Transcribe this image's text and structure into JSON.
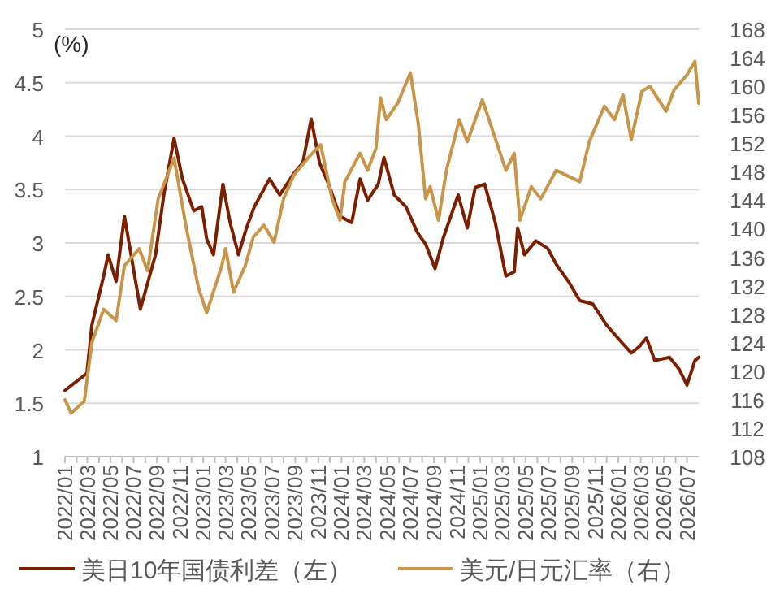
{
  "chart_data": {
    "type": "line",
    "ylabel": "(%)",
    "ylim": [
      1,
      5
    ],
    "yticks": [
      1,
      1.5,
      2,
      2.5,
      3,
      3.5,
      4,
      4.5,
      5
    ],
    "y2lim": [
      108,
      168
    ],
    "y2ticks": [
      108,
      112,
      116,
      120,
      124,
      128,
      132,
      136,
      140,
      144,
      148,
      152,
      156,
      160,
      164,
      168
    ],
    "xlim": [
      "2022-01-01",
      "2026-08-01"
    ],
    "xticks": [
      {
        "value": "2022-01",
        "label": "2022/01"
      },
      {
        "value": "2022-02",
        "label": null
      },
      {
        "value": "2022-03",
        "label": "2022/03"
      },
      {
        "value": "2022-04",
        "label": null
      },
      {
        "value": "2022-05",
        "label": "2022/05"
      },
      {
        "value": "2022-06",
        "label": null
      },
      {
        "value": "2022-07",
        "label": "2022/07"
      },
      {
        "value": "2022-08",
        "label": null
      },
      {
        "value": "2022-09",
        "label": "2022/09"
      },
      {
        "value": "2022-10",
        "label": null
      },
      {
        "value": "2022-11",
        "label": "2022/11"
      },
      {
        "value": "2022-12",
        "label": null
      },
      {
        "value": "2023-01",
        "label": "2023/01"
      },
      {
        "value": "2023-02",
        "label": null
      },
      {
        "value": "2023-03",
        "label": "2023/03"
      },
      {
        "value": "2023-04",
        "label": null
      },
      {
        "value": "2023-05",
        "label": "2023/05"
      },
      {
        "value": "2023-06",
        "label": null
      },
      {
        "value": "2023-07",
        "label": "2023/07"
      },
      {
        "value": "2023-08",
        "label": null
      },
      {
        "value": "2023-09",
        "label": "2023/09"
      },
      {
        "value": "2023-10",
        "label": null
      },
      {
        "value": "2023-11",
        "label": "2023/11"
      },
      {
        "value": "2023-12",
        "label": null
      },
      {
        "value": "2024-01",
        "label": "2024/01"
      },
      {
        "value": "2024-02",
        "label": null
      },
      {
        "value": "2024-03",
        "label": "2024/03"
      },
      {
        "value": "2024-04",
        "label": null
      },
      {
        "value": "2024-05",
        "label": "2024/05"
      },
      {
        "value": "2024-06",
        "label": null
      },
      {
        "value": "2024-07",
        "label": "2024/07"
      },
      {
        "value": "2024-08",
        "label": null
      },
      {
        "value": "2024-09",
        "label": "2024/09"
      },
      {
        "value": "2024-10",
        "label": null
      },
      {
        "value": "2024-11",
        "label": "2024/11"
      },
      {
        "value": "2024-12",
        "label": null
      },
      {
        "value": "2025-01",
        "label": "2025/01"
      },
      {
        "value": "2025-02",
        "label": null
      },
      {
        "value": "2025-03",
        "label": "2025/03"
      },
      {
        "value": "2025-04",
        "label": null
      },
      {
        "value": "2025-05",
        "label": "2025/05"
      },
      {
        "value": "2025-06",
        "label": null
      },
      {
        "value": "2025-07",
        "label": "2025/07"
      },
      {
        "value": "2025-08",
        "label": null
      },
      {
        "value": "2025-09",
        "label": "2025/09"
      },
      {
        "value": "2025-10",
        "label": null
      },
      {
        "value": "2025-11",
        "label": "2025/11"
      },
      {
        "value": "2025-12",
        "label": null
      },
      {
        "value": "2026-01",
        "label": "2026/01"
      },
      {
        "value": "2026-02",
        "label": null
      },
      {
        "value": "2026-03",
        "label": "2026/03"
      },
      {
        "value": "2026-04",
        "label": null
      },
      {
        "value": "2026-05",
        "label": "2026/05"
      },
      {
        "value": "2026-06",
        "label": null
      },
      {
        "value": "2026-07",
        "label": "2026/07"
      }
    ],
    "grid": "y",
    "legend": "bottom",
    "series": [
      {
        "name": "美日10年国债利差（左）",
        "color": "#7a1f00",
        "x": [
          "2022-01-01",
          "2022-02-28",
          "2022-03-13",
          "2022-04-13",
          "2022-04-25",
          "2022-05-16",
          "2022-06-07",
          "2022-07-19",
          "2022-08-28",
          "2022-09-19",
          "2022-10-16",
          "2022-11-07",
          "2022-12-07",
          "2022-12-28",
          "2023-01-10",
          "2023-01-28",
          "2023-02-22",
          "2023-03-13",
          "2023-04-04",
          "2023-04-25",
          "2023-05-16",
          "2023-06-25",
          "2023-07-22",
          "2023-08-28",
          "2023-09-21",
          "2023-10-13",
          "2023-11-04",
          "2023-11-28",
          "2023-12-28",
          "2024-01-28",
          "2024-02-19",
          "2024-03-10",
          "2024-04-07",
          "2024-04-22",
          "2024-05-19",
          "2024-06-19",
          "2024-07-19",
          "2024-08-10",
          "2024-09-04",
          "2024-09-25",
          "2024-11-04",
          "2024-11-28",
          "2024-12-19",
          "2025-01-13",
          "2025-02-10",
          "2025-03-10",
          "2025-04-01",
          "2025-04-10",
          "2025-04-28",
          "2025-05-28",
          "2025-06-28",
          "2025-07-21",
          "2025-08-22",
          "2025-09-21",
          "2025-10-25",
          "2025-12-01",
          "2026-01-07",
          "2026-02-04",
          "2026-02-25",
          "2026-03-16",
          "2026-04-07",
          "2026-05-16",
          "2026-06-10",
          "2026-07-01",
          "2026-07-22",
          "2026-08-01"
        ],
        "values": [
          1.62,
          1.78,
          2.23,
          2.69,
          2.89,
          2.64,
          3.25,
          2.38,
          2.89,
          3.45,
          3.98,
          3.6,
          3.3,
          3.34,
          3.04,
          2.89,
          3.55,
          3.19,
          2.89,
          3.14,
          3.34,
          3.6,
          3.45,
          3.65,
          3.75,
          4.16,
          3.75,
          3.55,
          3.25,
          3.19,
          3.6,
          3.4,
          3.55,
          3.8,
          3.45,
          3.34,
          3.1,
          2.99,
          2.76,
          3.04,
          3.45,
          3.14,
          3.52,
          3.55,
          3.19,
          2.69,
          2.73,
          3.14,
          2.89,
          3.02,
          2.95,
          2.8,
          2.64,
          2.46,
          2.43,
          2.23,
          2.08,
          1.97,
          2.03,
          2.11,
          1.9,
          1.93,
          1.82,
          1.67,
          1.9,
          1.93
        ]
      },
      {
        "name": "美元/日元汇率（右）",
        "color": "#c8964a",
        "axis": "y2",
        "x": [
          "2022-01-01",
          "2022-01-17",
          "2022-02-21",
          "2022-03-13",
          "2022-04-13",
          "2022-05-16",
          "2022-06-07",
          "2022-07-16",
          "2022-08-07",
          "2022-09-04",
          "2022-10-16",
          "2022-11-16",
          "2022-12-19",
          "2023-01-10",
          "2023-02-19",
          "2023-03-01",
          "2023-03-22",
          "2023-04-22",
          "2023-05-13",
          "2023-06-10",
          "2023-07-07",
          "2023-08-01",
          "2023-08-28",
          "2023-10-04",
          "2023-11-07",
          "2023-12-07",
          "2023-12-28",
          "2024-01-10",
          "2024-02-19",
          "2024-03-10",
          "2024-04-01",
          "2024-04-13",
          "2024-04-28",
          "2024-05-28",
          "2024-07-01",
          "2024-07-22",
          "2024-08-10",
          "2024-08-22",
          "2024-09-13",
          "2024-10-04",
          "2024-11-07",
          "2024-11-28",
          "2025-01-07",
          "2025-02-04",
          "2025-03-10",
          "2025-04-01",
          "2025-04-16",
          "2025-05-16",
          "2025-06-10",
          "2025-07-21",
          "2025-09-21",
          "2025-10-16",
          "2025-11-25",
          "2025-12-22",
          "2026-01-13",
          "2026-02-04",
          "2026-03-04",
          "2026-03-25",
          "2026-05-07",
          "2026-05-28",
          "2026-07-01",
          "2026-07-22",
          "2026-08-01"
        ],
        "values": [
          116.0,
          114.1,
          115.8,
          124.0,
          128.7,
          127.1,
          134.8,
          137.2,
          134.1,
          144.2,
          149.9,
          140.5,
          131.8,
          128.2,
          134.8,
          137.2,
          131.1,
          134.8,
          138.8,
          140.5,
          138.1,
          144.2,
          147.5,
          149.9,
          151.8,
          144.2,
          141.2,
          146.6,
          150.6,
          148.2,
          151.3,
          158.4,
          155.3,
          157.6,
          161.9,
          154.6,
          144.2,
          145.9,
          141.2,
          148.2,
          155.3,
          152.2,
          158.1,
          153.6,
          148.2,
          150.6,
          141.2,
          145.9,
          144.2,
          148.2,
          146.6,
          152.2,
          157.2,
          155.3,
          158.8,
          152.5,
          159.3,
          160.0,
          156.5,
          159.5,
          161.6,
          163.5,
          157.6
        ]
      }
    ]
  }
}
